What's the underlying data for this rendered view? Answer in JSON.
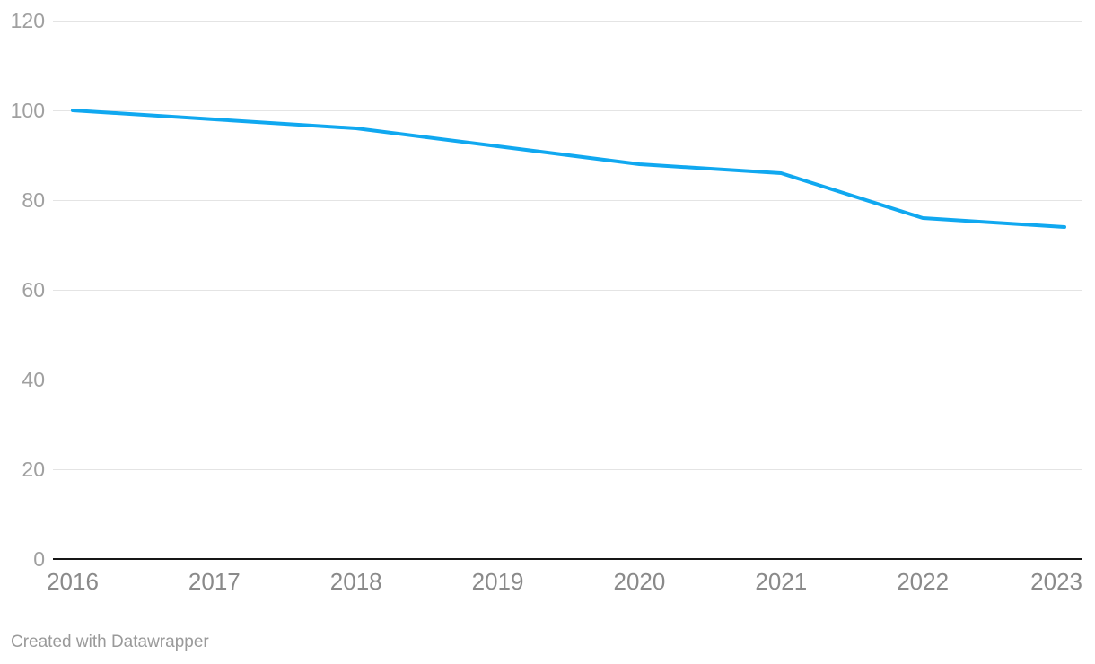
{
  "attribution": {
    "label": "Created with Datawrapper"
  },
  "colors": {
    "background": "#ffffff",
    "line": "#10a8f0",
    "grid": "#e4e4e4",
    "baseline": "#161616",
    "y_tick": "#a0a0a0",
    "x_tick": "#8a8a8a",
    "attribution": "#9a9a9a"
  },
  "chart_data": {
    "type": "line",
    "categories": [
      "2016",
      "2017",
      "2018",
      "2019",
      "2020",
      "2021",
      "2022",
      "2023"
    ],
    "values": [
      100,
      98,
      96,
      92,
      88,
      86,
      76,
      74
    ],
    "title": "",
    "xlabel": "",
    "ylabel": "",
    "ylim": [
      0,
      120
    ],
    "yticks": [
      0,
      20,
      40,
      60,
      80,
      100,
      120
    ],
    "grid": "horizontal",
    "legend": "none",
    "line_width": 4
  }
}
